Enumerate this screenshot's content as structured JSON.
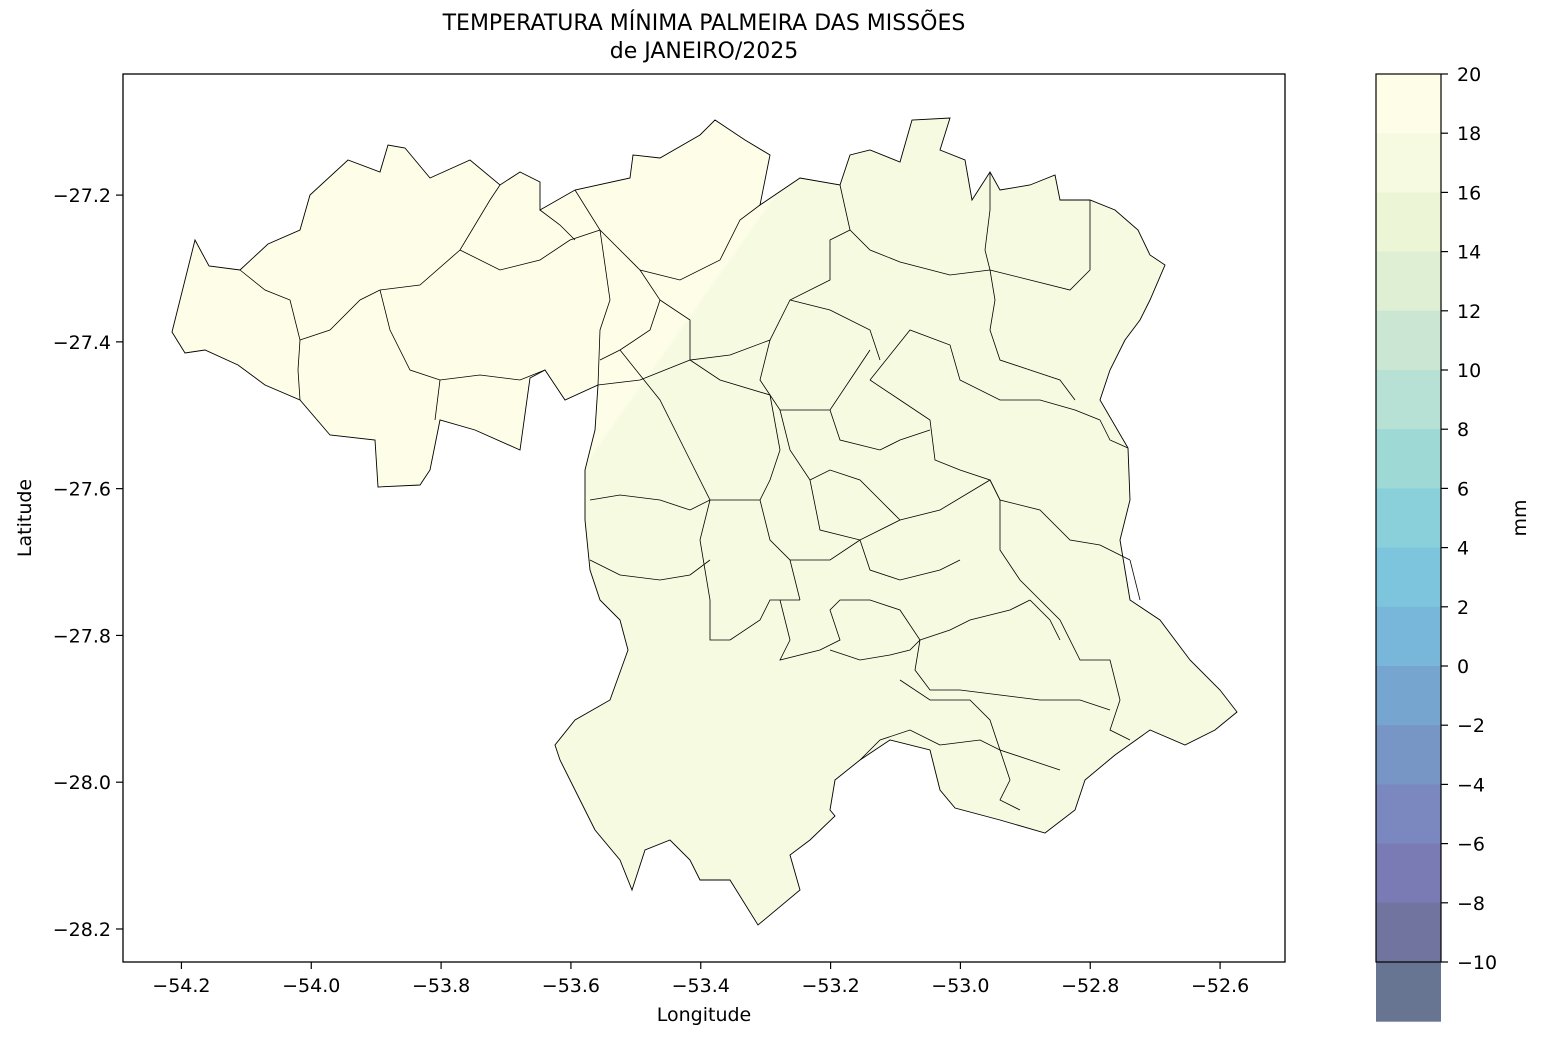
{
  "title_line1": "TEMPERATURA MÍNIMA PALMEIRA DAS MISSÕES",
  "title_line2": "de JANEIRO/2025",
  "chart_data": {
    "type": "heatmap",
    "title": "TEMPERATURA MÍNIMA PALMEIRA DAS MISSÕES de JANEIRO/2025",
    "xlabel": "Longitude",
    "ylabel": "Latitude",
    "xlim": [
      -54.29,
      -52.5
    ],
    "ylim": [
      -28.245,
      -27.035
    ],
    "x_ticks": [
      -54.2,
      -54.0,
      -53.8,
      -53.6,
      -53.4,
      -53.2,
      -53.0,
      -52.8,
      -52.6
    ],
    "x_tick_labels": [
      "−54.2",
      "−54.0",
      "−53.8",
      "−53.6",
      "−53.4",
      "−53.2",
      "−53.0",
      "−52.8",
      "−52.6"
    ],
    "y_ticks": [
      -27.2,
      -27.4,
      -27.6,
      -27.8,
      -28.0,
      -28.2
    ],
    "y_tick_labels": [
      "−27.2",
      "−27.4",
      "−27.6",
      "−27.8",
      "−28.0",
      "−28.2"
    ],
    "grid": false,
    "colorbar": {
      "label": "mm",
      "min": -10,
      "max": 20,
      "step": 2,
      "ticks": [
        20,
        18,
        16,
        14,
        12,
        10,
        8,
        6,
        4,
        2,
        0,
        -2,
        -4,
        -6,
        -8,
        -10
      ],
      "tick_labels": [
        "20",
        "18",
        "16",
        "14",
        "12",
        "10",
        "8",
        "6",
        "4",
        "2",
        "0",
        "−2",
        "−4",
        "−6",
        "−8",
        "−10"
      ],
      "colors": [
        "#fefee8",
        "#f5fae0",
        "#ecf6d6",
        "#deefd3",
        "#cbe7d3",
        "#b6e1d4",
        "#9fd9d6",
        "#8ad0da",
        "#7cc5dc",
        "#78b7d9",
        "#76a6cf",
        "#7796c6",
        "#7a88bf",
        "#7a7ab5",
        "#71749f",
        "#687592"
      ]
    },
    "regions": {
      "western_min_temp_band": "18–20",
      "eastern_min_temp_band": "16–18"
    }
  }
}
